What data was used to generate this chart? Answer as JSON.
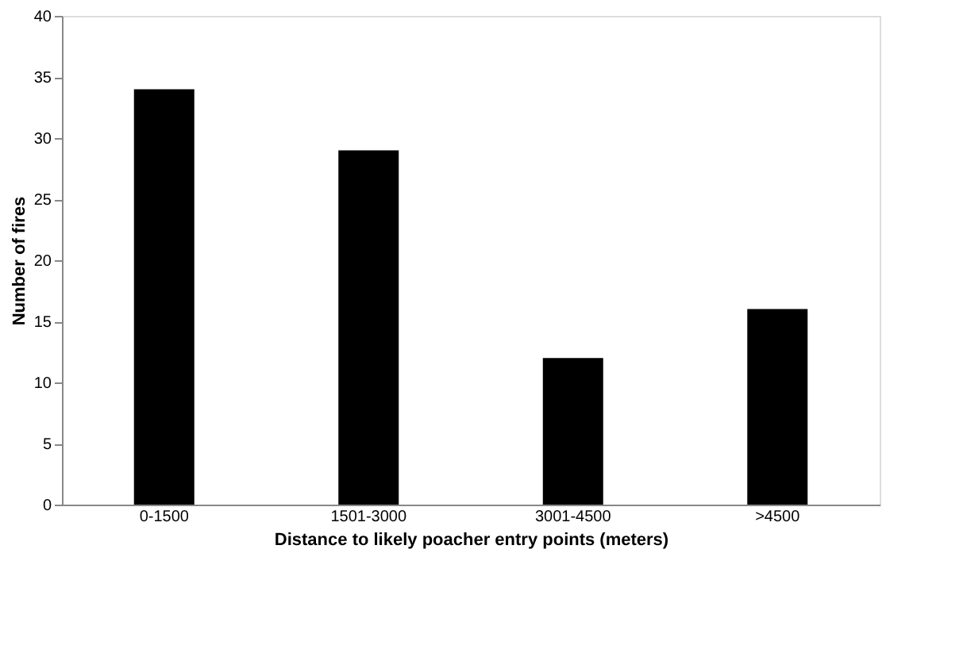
{
  "chart_data": {
    "type": "bar",
    "xlabel": "Distance to likely poacher entry points (meters)",
    "ylabel": "Number of fires",
    "categories": [
      "0-1500",
      "1501-3000",
      "3001-4500",
      ">4500"
    ],
    "values": [
      34,
      29,
      12,
      16
    ],
    "color": "#000000",
    "ylim": [
      0,
      40
    ],
    "yticks": [
      0,
      5,
      10,
      15,
      20,
      25,
      30,
      35,
      40
    ],
    "grid": false
  }
}
